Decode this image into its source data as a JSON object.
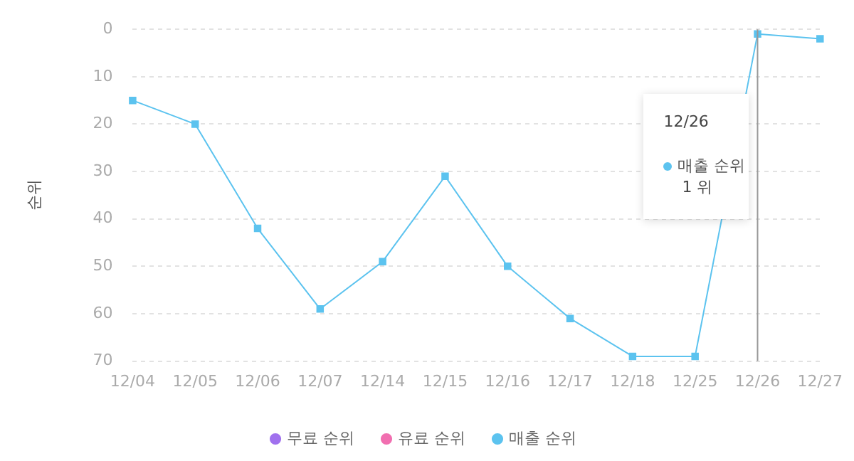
{
  "chart_data": {
    "type": "line",
    "ylabel": "순위",
    "categories": [
      "12/04",
      "12/05",
      "12/06",
      "12/07",
      "12/14",
      "12/15",
      "12/16",
      "12/17",
      "12/18",
      "12/25",
      "12/26",
      "12/27"
    ],
    "series": [
      {
        "name": "무료 순위",
        "color": "#a071ee",
        "values": [
          null,
          null,
          null,
          null,
          null,
          null,
          null,
          null,
          null,
          null,
          null,
          null
        ]
      },
      {
        "name": "유료 순위",
        "color": "#f16fb0",
        "values": [
          null,
          null,
          null,
          null,
          null,
          null,
          null,
          null,
          null,
          null,
          null,
          null
        ]
      },
      {
        "name": "매출 순위",
        "color": "#5cc3ef",
        "values": [
          15,
          20,
          42,
          59,
          49,
          31,
          50,
          61,
          69,
          69,
          1,
          2
        ]
      }
    ],
    "ylim": [
      70,
      0
    ],
    "yticks": [
      0,
      10,
      20,
      30,
      40,
      50,
      60,
      70
    ],
    "grid": "y",
    "legend": "bottom",
    "marker": "square",
    "line_style": "solid",
    "ref_lines": [
      {
        "axis": "x",
        "value": "12/26",
        "color": "#999999"
      }
    ],
    "annotations": [
      "12/26",
      "매출 순위",
      "1 위"
    ]
  }
}
